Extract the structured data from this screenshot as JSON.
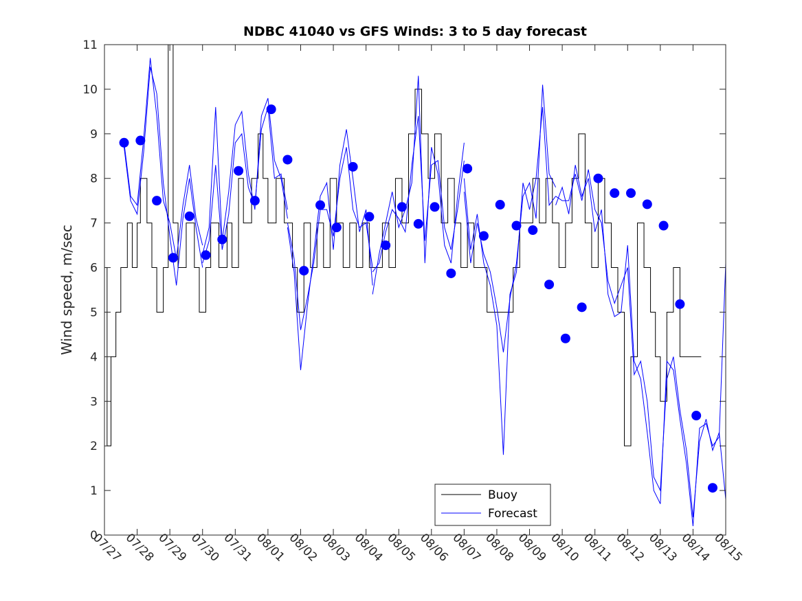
{
  "chart_data": {
    "type": "line",
    "title": "NDBC 41040 vs GFS Winds: 3 to 5 day forecast",
    "xlabel": "",
    "ylabel": "Wind speed, m/sec",
    "x_tick_labels": [
      "07/27",
      "07/28",
      "07/29",
      "07/30",
      "07/31",
      "08/01",
      "08/02",
      "08/03",
      "08/04",
      "08/05",
      "08/06",
      "08/07",
      "08/08",
      "08/09",
      "08/10",
      "08/11",
      "08/12",
      "08/13",
      "08/14",
      "08/15"
    ],
    "xlim_days": [
      0,
      19
    ],
    "ylim": [
      0,
      11
    ],
    "y_ticks": [
      0,
      1,
      2,
      3,
      4,
      5,
      6,
      7,
      8,
      9,
      10,
      11
    ],
    "grid": false,
    "legend_location": "bottom-center",
    "colors": {
      "buoy": "#000000",
      "forecast": "#0000ff",
      "axes": "#262626"
    },
    "series": [
      {
        "name": "Buoy",
        "style": "step",
        "x": [
          0,
          0.08,
          0.2,
          0.35,
          0.5,
          0.7,
          0.85,
          1.0,
          1.1,
          1.3,
          1.45,
          1.6,
          1.8,
          1.95,
          2.1,
          2.25,
          2.5,
          2.75,
          2.9,
          3.1,
          3.25,
          3.5,
          3.75,
          3.9,
          4.1,
          4.25,
          4.5,
          4.7,
          4.85,
          5.0,
          5.25,
          5.5,
          5.75,
          5.9,
          6.1,
          6.3,
          6.5,
          6.7,
          6.9,
          7.1,
          7.3,
          7.5,
          7.7,
          7.9,
          8.1,
          8.3,
          8.5,
          8.7,
          8.9,
          9.1,
          9.3,
          9.5,
          9.7,
          9.9,
          10.1,
          10.3,
          10.5,
          10.7,
          10.9,
          11.1,
          11.3,
          11.5,
          11.7,
          11.9,
          12.1,
          12.3,
          12.5,
          12.7,
          12.9,
          13.1,
          13.3,
          13.5,
          13.7,
          13.9,
          14.1,
          14.3,
          14.5,
          14.7,
          14.9,
          15.1,
          15.3,
          15.5,
          15.7,
          15.9,
          16.1,
          16.3,
          16.5,
          16.7,
          16.85,
          17.0,
          17.2,
          17.4,
          17.6,
          17.8,
          18.0
        ],
        "y": [
          6,
          2,
          4,
          5,
          6,
          7,
          6,
          7,
          8,
          7,
          6,
          5,
          6,
          11,
          7,
          6,
          7,
          6,
          5,
          6,
          7,
          6,
          7,
          6,
          8,
          7,
          8,
          9,
          8,
          7,
          8,
          7,
          6,
          5,
          7,
          6,
          7,
          6,
          8,
          7,
          6,
          7,
          6,
          7,
          6,
          6,
          7,
          6,
          8,
          7,
          9,
          10,
          9,
          8,
          9,
          7,
          8,
          7,
          6,
          7,
          6,
          6,
          5,
          5,
          5,
          5,
          6,
          7,
          7,
          8,
          7,
          8,
          7,
          6,
          7,
          8,
          9,
          7,
          6,
          8,
          7,
          6,
          5,
          2,
          4,
          7,
          6,
          5,
          4,
          3,
          5,
          6,
          4,
          4,
          4
        ]
      },
      {
        "name": "Forecast",
        "style": "line",
        "runs": [
          {
            "x": [
              0.6,
              0.8,
              1.0,
              1.2,
              1.4,
              1.6,
              1.8,
              2.0,
              2.2,
              2.4,
              2.6,
              2.8,
              3.0
            ],
            "y": [
              8.8,
              7.6,
              7.4,
              8.9,
              10.7,
              9.4,
              7.5,
              7.0,
              6.2,
              7.4,
              8.3,
              7.1,
              6.5
            ]
          },
          {
            "x": [
              0.6,
              0.8,
              1.0,
              1.2,
              1.4,
              1.6,
              1.8,
              2.0,
              2.2,
              2.4,
              2.6,
              2.8,
              3.0
            ],
            "y": [
              8.7,
              7.5,
              7.2,
              8.6,
              10.5,
              9.9,
              7.9,
              6.7,
              5.6,
              7.1,
              8.0,
              6.9,
              6.0
            ]
          },
          {
            "x": [
              3.0,
              3.2,
              3.4,
              3.6,
              3.8,
              4.0,
              4.2,
              4.4,
              4.6,
              4.8,
              5.0,
              5.2,
              5.4,
              5.6
            ],
            "y": [
              6.3,
              6.9,
              9.6,
              6.6,
              7.7,
              9.2,
              9.5,
              8.1,
              7.3,
              9.4,
              9.8,
              8.4,
              8.0,
              7.1
            ]
          },
          {
            "x": [
              3.0,
              3.2,
              3.4,
              3.6,
              3.8,
              4.0,
              4.2,
              4.4,
              4.6,
              4.8,
              5.0,
              5.2,
              5.4,
              5.6
            ],
            "y": [
              6.1,
              6.6,
              8.3,
              6.4,
              7.2,
              8.8,
              9.0,
              7.8,
              7.4,
              9.1,
              9.6,
              8.0,
              8.1,
              7.3
            ]
          },
          {
            "x": [
              5.6,
              5.8,
              6.0,
              6.2,
              6.4,
              6.6,
              6.8,
              7.0,
              7.2,
              7.4,
              7.6,
              7.8,
              8.0,
              8.2
            ],
            "y": [
              6.9,
              5.9,
              3.7,
              5.1,
              6.3,
              7.6,
              7.9,
              6.4,
              8.3,
              9.1,
              8.0,
              6.8,
              7.3,
              5.6
            ]
          },
          {
            "x": [
              5.6,
              5.8,
              6.0,
              6.2,
              6.4,
              6.6,
              6.8,
              7.0,
              7.2,
              7.4,
              7.6,
              7.8,
              8.0,
              8.2
            ],
            "y": [
              7.0,
              6.2,
              4.6,
              5.3,
              6.1,
              7.3,
              7.3,
              6.7,
              8.0,
              8.7,
              7.3,
              6.9,
              7.0,
              6.0
            ]
          },
          {
            "x": [
              8.2,
              8.4,
              8.6,
              8.8,
              9.0,
              9.2,
              9.4,
              9.6,
              9.8,
              10.0,
              10.2,
              10.4,
              10.6,
              10.8,
              11.0
            ],
            "y": [
              5.4,
              6.3,
              7.0,
              7.7,
              6.9,
              7.3,
              7.9,
              10.3,
              6.1,
              8.7,
              8.1,
              6.5,
              6.1,
              7.6,
              8.8
            ]
          },
          {
            "x": [
              8.2,
              8.4,
              8.6,
              8.8,
              9.0,
              9.2,
              9.4,
              9.6,
              9.8,
              10.0,
              10.2,
              10.4,
              10.6,
              10.8,
              11.0
            ],
            "y": [
              5.9,
              6.1,
              6.8,
              7.3,
              7.1,
              6.8,
              8.3,
              9.4,
              6.6,
              8.3,
              8.4,
              6.9,
              6.4,
              7.3,
              8.4
            ]
          },
          {
            "x": [
              11.0,
              11.2,
              11.4,
              11.6,
              11.8,
              12.0,
              12.2,
              12.4,
              12.6,
              12.8,
              13.0,
              13.2,
              13.4,
              13.6,
              13.8
            ],
            "y": [
              7.7,
              6.1,
              7.0,
              6.3,
              5.9,
              5.1,
              4.1,
              5.3,
              6.1,
              7.6,
              7.9,
              7.1,
              10.1,
              8.1,
              7.8
            ]
          },
          {
            "x": [
              11.0,
              11.2,
              11.4,
              11.6,
              11.8,
              12.0,
              12.2,
              12.4,
              12.6,
              12.8,
              13.0,
              13.2,
              13.4,
              13.6,
              13.8
            ],
            "y": [
              8.0,
              6.4,
              7.2,
              6.1,
              5.6,
              4.7,
              1.8,
              5.4,
              5.9,
              7.9,
              7.3,
              8.0,
              9.6,
              7.4,
              7.6
            ]
          },
          {
            "x": [
              13.8,
              14.0,
              14.2,
              14.4,
              14.6,
              14.8,
              15.0,
              15.2,
              15.4,
              15.6,
              15.8,
              16.0,
              16.2,
              16.4,
              16.6,
              16.8,
              17.0,
              17.2,
              17.4,
              17.6,
              17.8,
              18.0,
              18.2,
              18.4,
              18.6,
              18.8,
              19.0
            ],
            "y": [
              7.4,
              7.8,
              7.2,
              8.3,
              7.6,
              8.0,
              6.8,
              7.3,
              5.4,
              4.9,
              5.0,
              6.5,
              3.9,
              3.5,
              2.3,
              1.0,
              0.7,
              3.9,
              3.7,
              2.6,
              1.6,
              0.2,
              2.4,
              2.5,
              2.0,
              2.2,
              6.1
            ]
          },
          {
            "x": [
              13.8,
              14.0,
              14.2,
              14.4,
              14.6,
              14.8,
              15.0,
              15.2,
              15.4,
              15.6,
              15.8,
              16.0,
              16.2,
              16.4,
              16.6,
              16.8,
              17.0,
              17.2,
              17.4,
              17.6,
              17.8,
              18.0,
              18.2,
              18.4,
              18.6,
              18.8,
              19.0
            ],
            "y": [
              7.6,
              7.5,
              7.5,
              8.1,
              7.5,
              8.2,
              7.3,
              7.0,
              5.7,
              5.2,
              5.6,
              6.0,
              3.6,
              3.9,
              3.0,
              1.3,
              1.0,
              3.5,
              4.0,
              2.8,
              1.9,
              0.4,
              2.1,
              2.6,
              1.9,
              2.3,
              0.8
            ]
          }
        ]
      },
      {
        "name": "",
        "style": "markers",
        "x": [
          0.6,
          1.1,
          1.6,
          2.1,
          2.6,
          3.1,
          3.6,
          4.1,
          4.6,
          5.1,
          5.6,
          6.1,
          6.6,
          7.1,
          7.6,
          8.1,
          8.6,
          9.1,
          9.6,
          10.1,
          10.6,
          11.1,
          11.6,
          12.1,
          12.6,
          13.1,
          13.6,
          14.1,
          14.6,
          15.1,
          15.6,
          16.1,
          16.6,
          17.1,
          17.6,
          18.1
        ],
        "y": [
          8.8,
          8.85,
          7.5,
          6.22,
          7.15,
          6.28,
          6.63,
          8.17,
          7.5,
          9.55,
          8.42,
          5.93,
          7.4,
          6.9,
          8.26,
          7.14,
          6.5,
          7.36,
          6.98,
          7.36,
          5.87,
          8.22,
          6.71,
          7.41,
          6.94,
          6.84,
          5.62,
          4.41,
          5.11,
          8.0,
          7.67,
          7.67,
          7.42,
          6.94,
          5.18,
          2.68
        ]
      }
    ],
    "extra_markers": {
      "x": [
        18.6
      ],
      "y": [
        1.06
      ]
    }
  }
}
